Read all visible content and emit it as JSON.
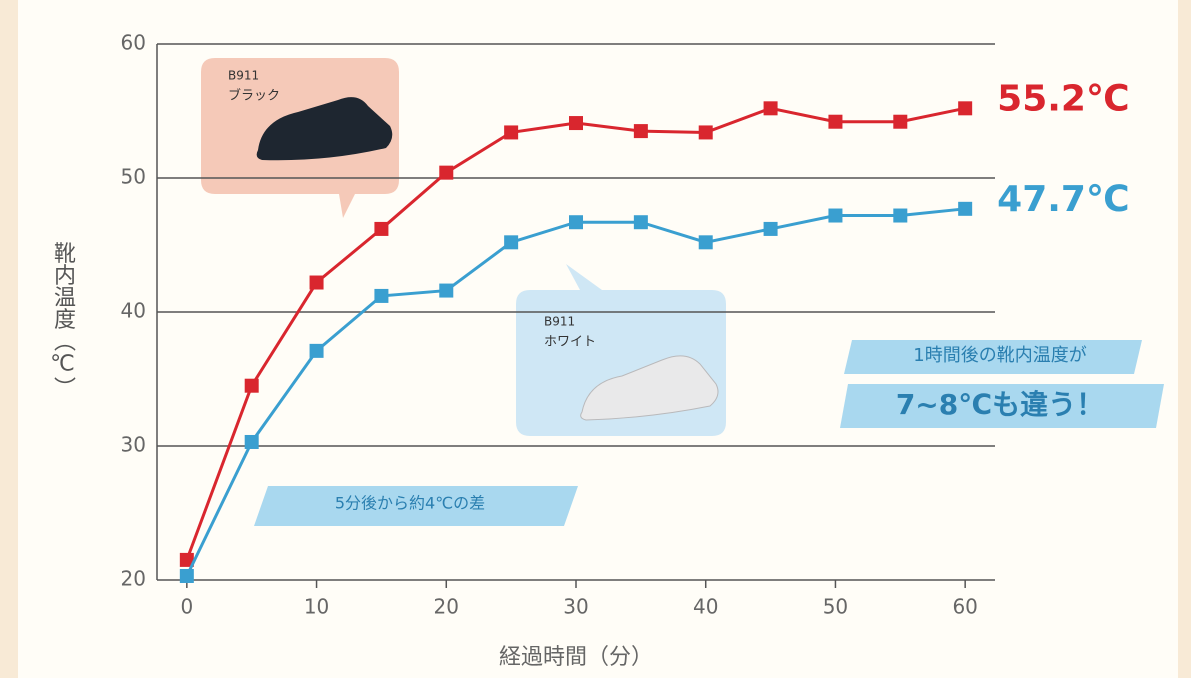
{
  "chart_data": {
    "type": "line",
    "y_label": "靴内温度（℃）",
    "x_label": "経過時間（分）",
    "x": [
      0,
      5,
      10,
      15,
      20,
      25,
      30,
      35,
      40,
      45,
      50,
      55,
      60
    ],
    "xlim": [
      -2.3,
      62.3
    ],
    "xticks": [
      0,
      10,
      20,
      30,
      40,
      50,
      60
    ],
    "ylim": [
      20,
      60
    ],
    "yticks": [
      20,
      30,
      40,
      50,
      60
    ],
    "grid": true,
    "series": [
      {
        "color": "#d9262e",
        "values": [
          21.5,
          34.5,
          42.2,
          46.2,
          50.4,
          53.4,
          54.1,
          53.5,
          53.4,
          55.2,
          54.2,
          54.2,
          55.2
        ],
        "value_labels": [
          null,
          null,
          null,
          null,
          null,
          null,
          null,
          null,
          null,
          null,
          null,
          null,
          "55.2℃"
        ]
      },
      {
        "color": "#3a9fd0",
        "values": [
          20.3,
          30.3,
          37.1,
          41.2,
          41.6,
          45.2,
          46.7,
          46.7,
          45.2,
          46.2,
          47.2,
          47.2,
          47.7
        ],
        "value_labels": [
          null,
          null,
          null,
          null,
          null,
          null,
          null,
          null,
          null,
          null,
          null,
          null,
          "47.7℃"
        ]
      }
    ],
    "callouts": [
      {
        "lines": [
          "B911",
          "ブラック"
        ]
      },
      {
        "lines": [
          "B911",
          "ホワイト"
        ]
      }
    ],
    "annotations": [
      "5分後から約4℃の差",
      "1時間後の靴内温度が",
      "7~8℃も違う！"
    ]
  }
}
